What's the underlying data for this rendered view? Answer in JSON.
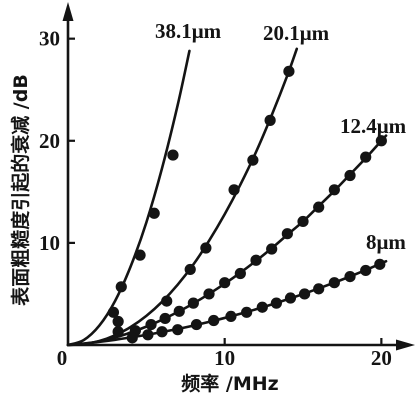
{
  "chart_data": {
    "type": "scatter",
    "xlabel": "频率 /MHz",
    "ylabel": "表面粗糙度引起的衰减 /dB",
    "xlim": [
      0,
      21.7
    ],
    "ylim": [
      0,
      33.2
    ],
    "xticks": [
      0,
      10,
      20
    ],
    "yticks": [
      10,
      20,
      30
    ],
    "grid": false,
    "legend": "none",
    "series": [
      {
        "name": "38.1μm",
        "line": [
          [
            0,
            0
          ],
          [
            1,
            0.48
          ],
          [
            2,
            1.9
          ],
          [
            3,
            4.3
          ],
          [
            4,
            7.7
          ],
          [
            5,
            12.0
          ],
          [
            6,
            17.3
          ],
          [
            7,
            23.5
          ],
          [
            7.75,
            28.8
          ]
        ],
        "points": [
          [
            2.9,
            3.2
          ],
          [
            3.4,
            5.7
          ],
          [
            4.6,
            8.8
          ],
          [
            5.5,
            12.9
          ],
          [
            6.7,
            18.6
          ]
        ]
      },
      {
        "name": "20.1μm",
        "line": [
          [
            0,
            0
          ],
          [
            1,
            0.09
          ],
          [
            2,
            0.39
          ],
          [
            3,
            0.95
          ],
          [
            4,
            1.76
          ],
          [
            5,
            2.85
          ],
          [
            6,
            4.23
          ],
          [
            7,
            5.91
          ],
          [
            8,
            7.88
          ],
          [
            9,
            10.2
          ],
          [
            10,
            12.8
          ],
          [
            11,
            15.7
          ],
          [
            12,
            18.9
          ],
          [
            13,
            22.5
          ],
          [
            14,
            26.4
          ],
          [
            14.6,
            29.0
          ]
        ],
        "points": [
          [
            3.2,
            2.3
          ],
          [
            6.3,
            4.3
          ],
          [
            7.8,
            7.4
          ],
          [
            8.8,
            9.5
          ],
          [
            10.6,
            15.2
          ],
          [
            11.8,
            18.1
          ],
          [
            12.9,
            22.0
          ],
          [
            14.1,
            26.8
          ]
        ]
      },
      {
        "name": "12.4μm",
        "line": [
          [
            0,
            0
          ],
          [
            1,
            0.11
          ],
          [
            2,
            0.37
          ],
          [
            3,
            0.74
          ],
          [
            4,
            1.22
          ],
          [
            5,
            1.8
          ],
          [
            6,
            2.47
          ],
          [
            7,
            3.23
          ],
          [
            8,
            4.07
          ],
          [
            9,
            5.0
          ],
          [
            10,
            6.0
          ],
          [
            11,
            7.08
          ],
          [
            12,
            8.24
          ],
          [
            13,
            9.47
          ],
          [
            14,
            10.8
          ],
          [
            15,
            12.1
          ],
          [
            16,
            13.6
          ],
          [
            17,
            15.1
          ],
          [
            18,
            16.7
          ],
          [
            19,
            18.3
          ],
          [
            20,
            20.0
          ],
          [
            20.3,
            20.5
          ]
        ],
        "points": [
          [
            3.2,
            1.3
          ],
          [
            4.3,
            1.4
          ],
          [
            5.3,
            2.0
          ],
          [
            6.2,
            2.6
          ],
          [
            7.1,
            3.3
          ],
          [
            8.0,
            4.1
          ],
          [
            9.0,
            5.0
          ],
          [
            10.0,
            6.1
          ],
          [
            11.0,
            7.0
          ],
          [
            12.0,
            8.3
          ],
          [
            13.0,
            9.4
          ],
          [
            14.0,
            10.9
          ],
          [
            15.0,
            12.1
          ],
          [
            16.0,
            13.5
          ],
          [
            17.0,
            15.2
          ],
          [
            18.0,
            16.6
          ],
          [
            19.0,
            18.4
          ],
          [
            20.0,
            20.0
          ]
        ]
      },
      {
        "name": "8μm",
        "line": [
          [
            0,
            0
          ],
          [
            1,
            0.14
          ],
          [
            2,
            0.31
          ],
          [
            3,
            0.51
          ],
          [
            4,
            0.74
          ],
          [
            5,
            0.99
          ],
          [
            6,
            1.27
          ],
          [
            7,
            1.57
          ],
          [
            8,
            1.9
          ],
          [
            9,
            2.26
          ],
          [
            10,
            2.65
          ],
          [
            11,
            3.06
          ],
          [
            12,
            3.5
          ],
          [
            13,
            3.97
          ],
          [
            14,
            4.47
          ],
          [
            15,
            4.99
          ],
          [
            16,
            5.54
          ],
          [
            17,
            6.11
          ],
          [
            18,
            6.71
          ],
          [
            19,
            7.34
          ],
          [
            20,
            8.0
          ],
          [
            20.3,
            8.2
          ]
        ],
        "points": [
          [
            4.1,
            0.7
          ],
          [
            5.1,
            1.0
          ],
          [
            6.0,
            1.3
          ],
          [
            7.0,
            1.5
          ],
          [
            8.2,
            2.0
          ],
          [
            9.3,
            2.4
          ],
          [
            10.4,
            2.8
          ],
          [
            11.4,
            3.2
          ],
          [
            12.4,
            3.7
          ],
          [
            13.3,
            4.1
          ],
          [
            14.2,
            4.6
          ],
          [
            15.1,
            5.0
          ],
          [
            16.0,
            5.5
          ],
          [
            17.0,
            6.1
          ],
          [
            18.0,
            6.7
          ],
          [
            19.0,
            7.3
          ],
          [
            19.9,
            7.9
          ]
        ]
      }
    ]
  },
  "colors": {
    "ink": "#141414",
    "background": "#ffffff"
  }
}
